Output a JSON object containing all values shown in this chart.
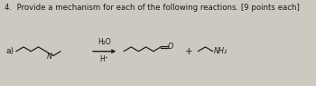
{
  "title_text": "4.  Provide a mechanism for each of the following reactions. [9 points each]",
  "label_a": "a)",
  "reagent_top": "H₂O",
  "reagent_bot": "H⁺",
  "plus": "+",
  "nh2_label": "NH₂",
  "o_label": "O",
  "n_label": "N",
  "bg_color": "#ccc9c0",
  "text_color": "#1a1a1a",
  "title_fontsize": 6.2,
  "label_fontsize": 6.5,
  "chem_fontsize": 5.8,
  "reagent_fontsize": 5.5
}
